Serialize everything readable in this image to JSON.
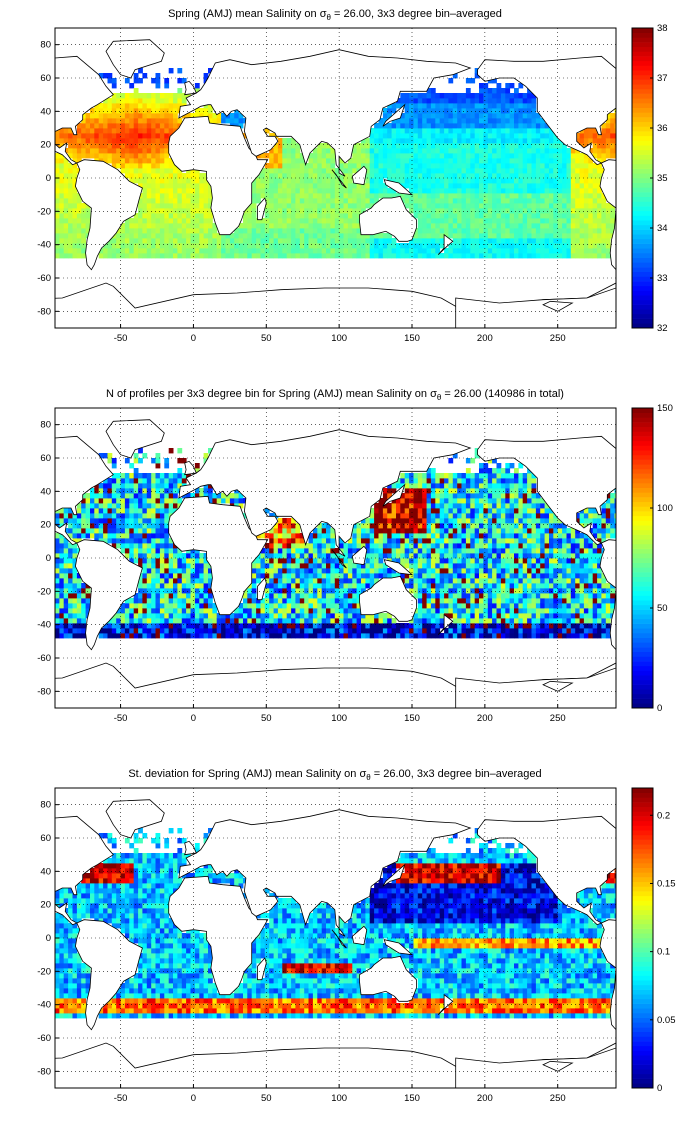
{
  "chart_data": [
    {
      "type": "heatmap",
      "title_main": "Spring (AMJ) mean Salinity on σ",
      "title_sub": "θ",
      "title_rest": " = 26.00, 3x3 degree bin–averaged",
      "xticks": [
        -50,
        0,
        50,
        100,
        150,
        200,
        250
      ],
      "yticks": [
        80,
        60,
        40,
        20,
        0,
        -20,
        -40,
        -60,
        -80
      ],
      "xlim": [
        -95,
        290
      ],
      "ylim": [
        -90,
        90
      ],
      "grid": true,
      "colorbar": {
        "min": 32,
        "max": 38,
        "ticks": [
          38,
          37,
          36,
          35,
          34,
          33,
          32
        ],
        "colormap": "jet"
      },
      "variable": "salinity"
    },
    {
      "type": "heatmap",
      "title_main": "N of profiles per 3x3 degree bin for Spring (AMJ) mean Salinity on σ",
      "title_sub": "θ",
      "title_rest": " = 26.00 (140986 in total)",
      "xticks": [
        -50,
        0,
        50,
        100,
        150,
        200,
        250
      ],
      "yticks": [
        80,
        60,
        40,
        20,
        0,
        -20,
        -40,
        -60,
        -80
      ],
      "xlim": [
        -95,
        290
      ],
      "ylim": [
        -90,
        90
      ],
      "grid": true,
      "colorbar": {
        "min": 0,
        "max": 150,
        "ticks": [
          150,
          100,
          50,
          0
        ],
        "colormap": "jet"
      },
      "variable": "count"
    },
    {
      "type": "heatmap",
      "title_main": "St. deviation for Spring (AMJ) mean Salinity on σ",
      "title_sub": "θ",
      "title_rest": " = 26.00, 3x3 degree bin–averaged",
      "xticks": [
        -50,
        0,
        50,
        100,
        150,
        200,
        250
      ],
      "yticks": [
        80,
        60,
        40,
        20,
        0,
        -20,
        -40,
        -60,
        -80
      ],
      "xlim": [
        -95,
        290
      ],
      "ylim": [
        -90,
        90
      ],
      "grid": true,
      "colorbar": {
        "min": 0,
        "max": 0.22,
        "ticks": [
          0.2,
          0.15,
          0.1,
          0.05,
          0
        ],
        "colormap": "jet"
      },
      "variable": "stddev"
    }
  ]
}
